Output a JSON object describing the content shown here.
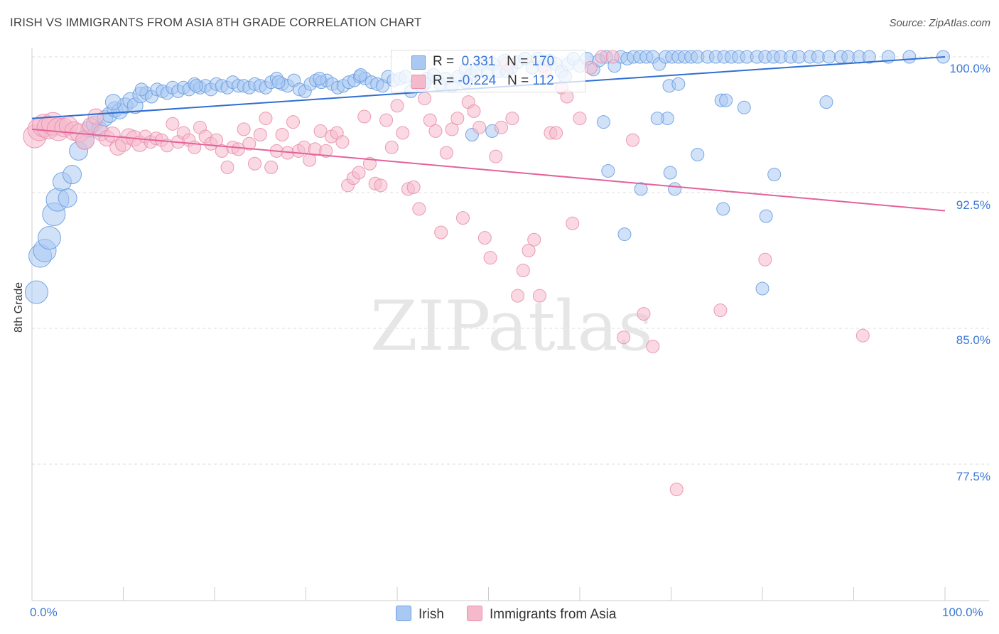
{
  "header": {
    "title": "IRISH VS IMMIGRANTS FROM ASIA 8TH GRADE CORRELATION CHART",
    "source": "Source: ZipAtlas.com"
  },
  "watermark": "ZIPatlas",
  "legend": {
    "rows": [
      {
        "r_label": "R =",
        "r_value": " 0.331",
        "n_label": "N =",
        "n_value": "170",
        "color": "#a9c8f2"
      },
      {
        "r_label": "R =",
        "r_value": "-0.224",
        "n_label": "N =",
        "n_value": "112",
        "color": "#f5b9cc"
      }
    ]
  },
  "bottom_legend": [
    "Irish",
    "Immigrants from Asia"
  ],
  "colors": {
    "irish_fill": "#a9c8f2",
    "irish_stroke": "#6a9fe0",
    "irish_line": "#2f6fd1",
    "asia_fill": "#f5b9cc",
    "asia_stroke": "#e98fae",
    "asia_line": "#e5619a",
    "grid": "#dddddd",
    "axis_label": "#3a78d8"
  },
  "chart_data": {
    "type": "scatter",
    "title": "IRISH VS IMMIGRANTS FROM ASIA 8TH GRADE CORRELATION CHART",
    "xlabel": "",
    "ylabel": "8th Grade",
    "xlim": [
      0,
      100
    ],
    "ylim": [
      70.0,
      101.5
    ],
    "x_tick_labels": [
      "0.0%",
      "100.0%"
    ],
    "y_ticks": [
      100.0,
      92.5,
      85.0,
      77.5
    ],
    "y_tick_labels": [
      "100.0%",
      "92.5%",
      "85.0%",
      "77.5%"
    ],
    "series": [
      {
        "name": "Irish",
        "r": 0.331,
        "n": 170,
        "trend": {
          "x0": 0,
          "y0": 96.6,
          "x1": 100,
          "y1": 100.0
        },
        "points": [
          [
            0.5,
            87.0
          ],
          [
            0.9,
            89.0
          ],
          [
            1.4,
            89.3
          ],
          [
            1.9,
            90.0
          ],
          [
            2.4,
            91.3
          ],
          [
            2.8,
            92.1
          ],
          [
            3.3,
            93.1
          ],
          [
            3.9,
            92.2
          ],
          [
            4.4,
            93.5
          ],
          [
            5.1,
            94.8
          ],
          [
            5.8,
            95.4
          ],
          [
            6.2,
            96.0
          ],
          [
            6.8,
            96.3
          ],
          [
            7.4,
            96.0
          ],
          [
            8.0,
            96.6
          ],
          [
            8.5,
            96.8
          ],
          [
            9.1,
            97.1
          ],
          [
            9.6,
            97.0
          ],
          [
            10.2,
            97.3
          ],
          [
            10.8,
            97.6
          ],
          [
            11.3,
            97.3
          ],
          [
            11.9,
            97.9
          ],
          [
            12.5,
            98.0
          ],
          [
            13.1,
            97.8
          ],
          [
            13.7,
            98.2
          ],
          [
            14.3,
            98.1
          ],
          [
            14.8,
            98.0
          ],
          [
            15.4,
            98.3
          ],
          [
            16.0,
            98.1
          ],
          [
            16.6,
            98.3
          ],
          [
            17.2,
            98.2
          ],
          [
            17.8,
            98.5
          ],
          [
            18.4,
            98.3
          ],
          [
            19.0,
            98.4
          ],
          [
            19.6,
            98.2
          ],
          [
            20.2,
            98.5
          ],
          [
            20.8,
            98.4
          ],
          [
            21.4,
            98.3
          ],
          [
            22.0,
            98.6
          ],
          [
            22.6,
            98.4
          ],
          [
            23.2,
            98.4
          ],
          [
            23.8,
            98.3
          ],
          [
            24.4,
            98.5
          ],
          [
            25.0,
            98.4
          ],
          [
            25.6,
            98.3
          ],
          [
            26.2,
            98.6
          ],
          [
            26.8,
            98.8
          ],
          [
            27.4,
            98.5
          ],
          [
            28.0,
            98.4
          ],
          [
            28.7,
            98.7
          ],
          [
            29.3,
            98.2
          ],
          [
            29.9,
            98.1
          ],
          [
            30.5,
            98.5
          ],
          [
            31.1,
            98.7
          ],
          [
            31.7,
            98.6
          ],
          [
            32.3,
            98.7
          ],
          [
            32.9,
            98.5
          ],
          [
            33.5,
            98.3
          ],
          [
            34.1,
            98.4
          ],
          [
            34.7,
            98.6
          ],
          [
            35.3,
            98.7
          ],
          [
            35.9,
            98.9
          ],
          [
            36.5,
            98.8
          ],
          [
            37.2,
            98.6
          ],
          [
            37.8,
            98.5
          ],
          [
            38.4,
            98.4
          ],
          [
            39.0,
            98.9
          ],
          [
            39.6,
            98.7
          ],
          [
            40.3,
            98.8
          ],
          [
            40.9,
            98.9
          ],
          [
            41.5,
            98.1
          ],
          [
            42.1,
            98.5
          ],
          [
            42.7,
            98.4
          ],
          [
            43.3,
            98.8
          ],
          [
            44.0,
            99.0
          ],
          [
            44.7,
            98.5
          ],
          [
            45.3,
            98.8
          ],
          [
            46.0,
            98.4
          ],
          [
            46.7,
            98.9
          ],
          [
            47.5,
            99.3
          ],
          [
            48.1,
            99.0
          ],
          [
            48.7,
            99.2
          ],
          [
            49.3,
            99.6
          ],
          [
            49.9,
            99.1
          ],
          [
            50.5,
            99.6
          ],
          [
            51.1,
            99.2
          ],
          [
            51.8,
            99.8
          ],
          [
            52.5,
            99.4
          ],
          [
            53.2,
            99.7
          ],
          [
            54.0,
            99.9
          ],
          [
            54.8,
            99.4
          ],
          [
            55.4,
            99.9
          ],
          [
            56.0,
            99.5
          ],
          [
            56.7,
            99.8
          ],
          [
            57.4,
            99.6
          ],
          [
            58.0,
            99.2
          ],
          [
            58.7,
            99.6
          ],
          [
            59.3,
            99.9
          ],
          [
            60.0,
            99.5
          ],
          [
            60.8,
            99.9
          ],
          [
            61.5,
            99.3
          ],
          [
            62.1,
            99.8
          ],
          [
            62.9,
            100.0
          ],
          [
            63.8,
            99.5
          ],
          [
            64.5,
            100.0
          ],
          [
            65.2,
            99.9
          ],
          [
            65.9,
            100.0
          ],
          [
            66.6,
            100.0
          ],
          [
            67.3,
            100.0
          ],
          [
            68.0,
            100.0
          ],
          [
            68.7,
            99.6
          ],
          [
            69.4,
            100.0
          ],
          [
            70.1,
            100.0
          ],
          [
            70.8,
            100.0
          ],
          [
            71.5,
            100.0
          ],
          [
            72.2,
            100.0
          ],
          [
            72.9,
            100.0
          ],
          [
            74.0,
            100.0
          ],
          [
            74.9,
            100.0
          ],
          [
            75.8,
            100.0
          ],
          [
            76.6,
            100.0
          ],
          [
            77.4,
            100.0
          ],
          [
            78.3,
            100.0
          ],
          [
            79.4,
            100.0
          ],
          [
            80.3,
            100.0
          ],
          [
            81.2,
            100.0
          ],
          [
            82.0,
            100.0
          ],
          [
            83.1,
            100.0
          ],
          [
            84.0,
            100.0
          ],
          [
            85.2,
            100.0
          ],
          [
            86.1,
            100.0
          ],
          [
            87.3,
            100.0
          ],
          [
            88.6,
            100.0
          ],
          [
            89.4,
            100.0
          ],
          [
            90.6,
            100.0
          ],
          [
            91.7,
            100.0
          ],
          [
            93.8,
            100.0
          ],
          [
            96.1,
            100.0
          ],
          [
            99.8,
            100.0
          ],
          [
            69.8,
            98.4
          ],
          [
            70.8,
            98.5
          ],
          [
            87.0,
            97.5
          ],
          [
            75.5,
            97.6
          ],
          [
            76.0,
            97.6
          ],
          [
            69.6,
            96.6
          ],
          [
            78.0,
            97.2
          ],
          [
            68.5,
            96.6
          ],
          [
            62.6,
            96.4
          ],
          [
            50.4,
            95.9
          ],
          [
            48.2,
            95.7
          ],
          [
            69.9,
            93.6
          ],
          [
            63.1,
            93.7
          ],
          [
            72.9,
            94.6
          ],
          [
            81.3,
            93.5
          ],
          [
            70.4,
            92.7
          ],
          [
            75.7,
            91.6
          ],
          [
            80.4,
            91.2
          ],
          [
            66.7,
            92.7
          ],
          [
            64.9,
            90.2
          ],
          [
            80.0,
            87.2
          ],
          [
            8.9,
            97.5
          ],
          [
            12.0,
            98.2
          ],
          [
            18.0,
            98.4
          ],
          [
            27.0,
            98.6
          ],
          [
            31.5,
            98.8
          ],
          [
            36.0,
            99.0
          ],
          [
            43.0,
            98.5
          ],
          [
            47.5,
            98.6
          ],
          [
            52.0,
            99.2
          ],
          [
            58.4,
            98.9
          ]
        ]
      },
      {
        "name": "Immigrants from Asia",
        "r": -0.224,
        "n": 112,
        "trend": {
          "x0": 0,
          "y0": 96.0,
          "x1": 100,
          "y1": 91.5
        },
        "points": [
          [
            0.3,
            95.6
          ],
          [
            0.8,
            96.0
          ],
          [
            1.3,
            96.2
          ],
          [
            1.8,
            96.1
          ],
          [
            2.3,
            96.3
          ],
          [
            2.9,
            96.0
          ],
          [
            3.5,
            96.1
          ],
          [
            4.0,
            96.2
          ],
          [
            4.6,
            95.9
          ],
          [
            5.2,
            95.8
          ],
          [
            5.8,
            95.4
          ],
          [
            6.4,
            96.2
          ],
          [
            7.0,
            96.7
          ],
          [
            7.6,
            95.8
          ],
          [
            8.2,
            95.5
          ],
          [
            8.8,
            95.7
          ],
          [
            9.4,
            95.0
          ],
          [
            10.0,
            95.2
          ],
          [
            10.6,
            95.6
          ],
          [
            11.2,
            95.5
          ],
          [
            11.8,
            95.2
          ],
          [
            12.4,
            95.6
          ],
          [
            13.0,
            95.3
          ],
          [
            13.6,
            95.5
          ],
          [
            14.2,
            95.4
          ],
          [
            14.8,
            95.1
          ],
          [
            15.4,
            96.3
          ],
          [
            16.0,
            95.3
          ],
          [
            16.6,
            95.8
          ],
          [
            17.2,
            95.4
          ],
          [
            17.8,
            95.0
          ],
          [
            18.4,
            96.1
          ],
          [
            19.0,
            95.6
          ],
          [
            19.6,
            95.2
          ],
          [
            20.2,
            95.4
          ],
          [
            20.8,
            94.8
          ],
          [
            21.4,
            93.9
          ],
          [
            22.0,
            95.0
          ],
          [
            22.6,
            94.9
          ],
          [
            23.2,
            96.0
          ],
          [
            23.8,
            95.2
          ],
          [
            24.4,
            94.1
          ],
          [
            25.0,
            95.7
          ],
          [
            25.6,
            96.6
          ],
          [
            26.2,
            93.9
          ],
          [
            26.8,
            94.8
          ],
          [
            27.4,
            95.7
          ],
          [
            28.0,
            94.7
          ],
          [
            28.6,
            96.4
          ],
          [
            29.2,
            94.8
          ],
          [
            29.8,
            95.0
          ],
          [
            30.4,
            94.3
          ],
          [
            31.0,
            94.9
          ],
          [
            31.6,
            95.9
          ],
          [
            32.2,
            94.8
          ],
          [
            32.8,
            95.6
          ],
          [
            33.4,
            95.8
          ],
          [
            34.0,
            95.3
          ],
          [
            34.6,
            92.9
          ],
          [
            35.2,
            93.3
          ],
          [
            35.8,
            93.6
          ],
          [
            36.4,
            96.7
          ],
          [
            37.0,
            94.1
          ],
          [
            37.6,
            93.0
          ],
          [
            38.2,
            92.9
          ],
          [
            38.8,
            96.5
          ],
          [
            39.4,
            95.0
          ],
          [
            40.0,
            97.3
          ],
          [
            40.6,
            95.8
          ],
          [
            41.2,
            92.7
          ],
          [
            41.8,
            92.8
          ],
          [
            42.4,
            91.6
          ],
          [
            43.0,
            97.7
          ],
          [
            43.6,
            96.5
          ],
          [
            44.2,
            95.9
          ],
          [
            44.8,
            90.3
          ],
          [
            45.4,
            94.7
          ],
          [
            46.0,
            96.0
          ],
          [
            46.6,
            96.6
          ],
          [
            47.2,
            91.1
          ],
          [
            47.8,
            97.5
          ],
          [
            48.4,
            97.0
          ],
          [
            49.0,
            96.1
          ],
          [
            49.6,
            90.0
          ],
          [
            50.2,
            88.9
          ],
          [
            50.8,
            94.5
          ],
          [
            51.4,
            96.1
          ],
          [
            52.0,
            99.6
          ],
          [
            52.6,
            96.6
          ],
          [
            53.2,
            86.8
          ],
          [
            53.8,
            88.2
          ],
          [
            54.4,
            89.3
          ],
          [
            55.0,
            89.9
          ],
          [
            55.6,
            86.8
          ],
          [
            56.2,
            99.2
          ],
          [
            56.8,
            95.8
          ],
          [
            57.4,
            95.8
          ],
          [
            58.0,
            98.3
          ],
          [
            58.6,
            97.8
          ],
          [
            59.2,
            90.8
          ],
          [
            60.0,
            96.6
          ],
          [
            61.2,
            99.4
          ],
          [
            62.4,
            100.0
          ],
          [
            63.6,
            100.0
          ],
          [
            64.8,
            84.5
          ],
          [
            65.8,
            95.4
          ],
          [
            67.0,
            85.8
          ],
          [
            68.0,
            84.0
          ],
          [
            70.6,
            76.1
          ],
          [
            75.4,
            86.0
          ],
          [
            80.3,
            88.8
          ],
          [
            91.0,
            84.6
          ]
        ]
      }
    ]
  }
}
